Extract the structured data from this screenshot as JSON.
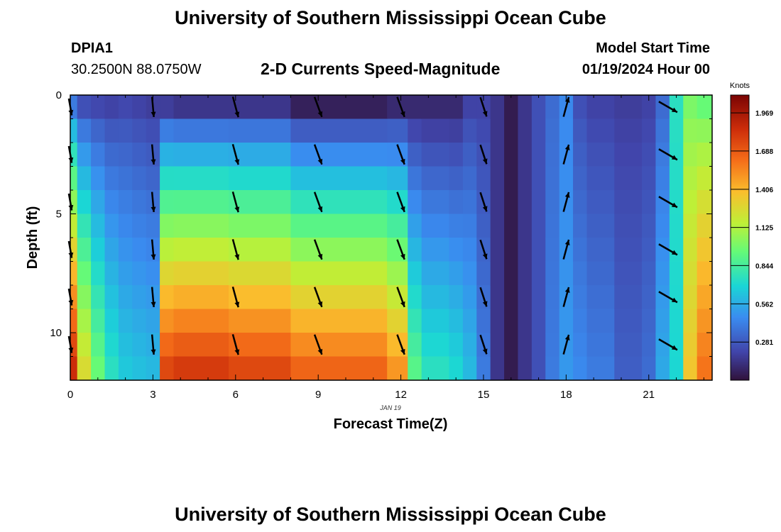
{
  "header": {
    "title": "University of Southern Mississippi Ocean Cube",
    "station": "DPIA1",
    "coords": "30.2500N  88.0750W",
    "subtitle": "2-D Currents Speed-Magnitude",
    "model_start_label": "Model Start Time",
    "model_start_value": "01/19/2024 Hour 00"
  },
  "footer": {
    "title": "University of Southern Mississippi Ocean Cube"
  },
  "chart_data": {
    "type": "heatmap",
    "title": "2-D Currents Speed-Magnitude",
    "xlabel": "Forecast Time(Z)",
    "ylabel": "Depth (ft)",
    "date_label": "JAN 19",
    "x_ticks": [
      0,
      3,
      6,
      9,
      12,
      15,
      18,
      21
    ],
    "y_ticks": [
      0,
      5,
      10
    ],
    "xlim": [
      0,
      23.3
    ],
    "ylim": [
      12,
      0
    ],
    "colorbar": {
      "label": "Knots",
      "ticks": [
        "1.969",
        "1.688",
        "1.406",
        "1.125",
        "0.844",
        "0.562",
        "0.281"
      ],
      "range": [
        0,
        2.1
      ]
    },
    "time_axis": [
      0.25,
      0.75,
      1.25,
      1.75,
      2.25,
      2.75,
      3.25,
      3.75,
      4.25,
      4.75,
      5.25,
      5.75,
      6.25,
      6.75,
      7.25,
      7.75,
      8.25,
      8.75,
      9.25,
      9.75,
      10.25,
      10.75,
      11.25,
      11.75,
      12.25,
      12.75,
      13.25,
      13.75,
      14.25,
      14.75,
      15.25,
      15.75,
      16.25,
      16.75,
      17.25,
      17.75,
      18.25,
      18.75,
      19.25,
      19.75,
      20.25,
      20.75,
      21.25,
      21.75,
      22.25,
      22.75
    ],
    "depth_axis": [
      0.5,
      1.5,
      2.5,
      3.5,
      4.5,
      5.5,
      6.5,
      7.5,
      8.5,
      9.5,
      10.5,
      11.5
    ],
    "profiles": [
      {
        "t_start": 0,
        "t_end": 0.25,
        "surface": 0.4,
        "bottom": 1.85
      },
      {
        "t_start": 0.25,
        "t_end": 0.75,
        "surface": 0.25,
        "bottom": 1.25
      },
      {
        "t_start": 0.75,
        "t_end": 1.25,
        "surface": 0.22,
        "bottom": 0.95
      },
      {
        "t_start": 1.25,
        "t_end": 1.75,
        "surface": 0.2,
        "bottom": 0.75
      },
      {
        "t_start": 1.75,
        "t_end": 2.25,
        "surface": 0.22,
        "bottom": 0.65
      },
      {
        "t_start": 2.25,
        "t_end": 2.75,
        "surface": 0.2,
        "bottom": 0.62
      },
      {
        "t_start": 2.75,
        "t_end": 3.25,
        "surface": 0.18,
        "bottom": 0.6
      },
      {
        "t_start": 3.25,
        "t_end": 3.75,
        "surface": 0.18,
        "bottom": 1.75
      },
      {
        "t_start": 3.75,
        "t_end": 5.75,
        "surface": 0.15,
        "bottom": 1.8
      },
      {
        "t_start": 5.75,
        "t_end": 8.0,
        "surface": 0.15,
        "bottom": 1.75
      },
      {
        "t_start": 8.0,
        "t_end": 11.5,
        "surface": 0.06,
        "bottom": 1.65
      },
      {
        "t_start": 11.5,
        "t_end": 12.25,
        "surface": 0.1,
        "bottom": 1.5
      },
      {
        "t_start": 12.25,
        "t_end": 12.75,
        "surface": 0.1,
        "bottom": 0.9
      },
      {
        "t_start": 12.75,
        "t_end": 13.75,
        "surface": 0.1,
        "bottom": 0.75
      },
      {
        "t_start": 13.75,
        "t_end": 14.25,
        "surface": 0.1,
        "bottom": 0.7
      },
      {
        "t_start": 14.25,
        "t_end": 14.75,
        "surface": 0.2,
        "bottom": 0.6
      },
      {
        "t_start": 14.75,
        "t_end": 15.25,
        "surface": 0.2,
        "bottom": 0.4
      },
      {
        "t_start": 15.25,
        "t_end": 15.75,
        "surface": 0.15,
        "bottom": 0.15
      },
      {
        "t_start": 15.75,
        "t_end": 16.25,
        "surface": 0.04,
        "bottom": 0.04
      },
      {
        "t_start": 16.25,
        "t_end": 16.75,
        "surface": 0.15,
        "bottom": 0.15
      },
      {
        "t_start": 16.75,
        "t_end": 17.25,
        "surface": 0.25,
        "bottom": 0.25
      },
      {
        "t_start": 17.25,
        "t_end": 17.75,
        "surface": 0.35,
        "bottom": 0.4
      },
      {
        "t_start": 17.75,
        "t_end": 18.25,
        "surface": 0.45,
        "bottom": 0.5
      },
      {
        "t_start": 18.25,
        "t_end": 18.75,
        "surface": 0.25,
        "bottom": 0.45
      },
      {
        "t_start": 18.75,
        "t_end": 19.75,
        "surface": 0.2,
        "bottom": 0.4
      },
      {
        "t_start": 19.75,
        "t_end": 20.75,
        "surface": 0.18,
        "bottom": 0.3
      },
      {
        "t_start": 20.75,
        "t_end": 21.25,
        "surface": 0.2,
        "bottom": 0.35
      },
      {
        "t_start": 21.25,
        "t_end": 21.75,
        "surface": 0.35,
        "bottom": 0.55
      },
      {
        "t_start": 21.75,
        "t_end": 22.25,
        "surface": 0.75,
        "bottom": 0.7
      },
      {
        "t_start": 22.25,
        "t_end": 22.75,
        "surface": 1.0,
        "bottom": 1.35
      },
      {
        "t_start": 22.75,
        "t_end": 23.3,
        "surface": 0.95,
        "bottom": 1.6
      }
    ],
    "vectors": {
      "times": [
        0,
        3,
        6,
        9,
        12,
        15,
        18,
        21.7
      ],
      "depths": [
        0.5,
        2.5,
        4.5,
        6.5,
        8.5,
        10.5
      ],
      "direction_deg": [
        170,
        175,
        165,
        160,
        160,
        162,
        15,
        120
      ],
      "relative_speed": [
        0.8,
        0.95,
        1.0,
        1.0,
        1.0,
        0.95,
        0.95,
        1.0
      ]
    }
  }
}
